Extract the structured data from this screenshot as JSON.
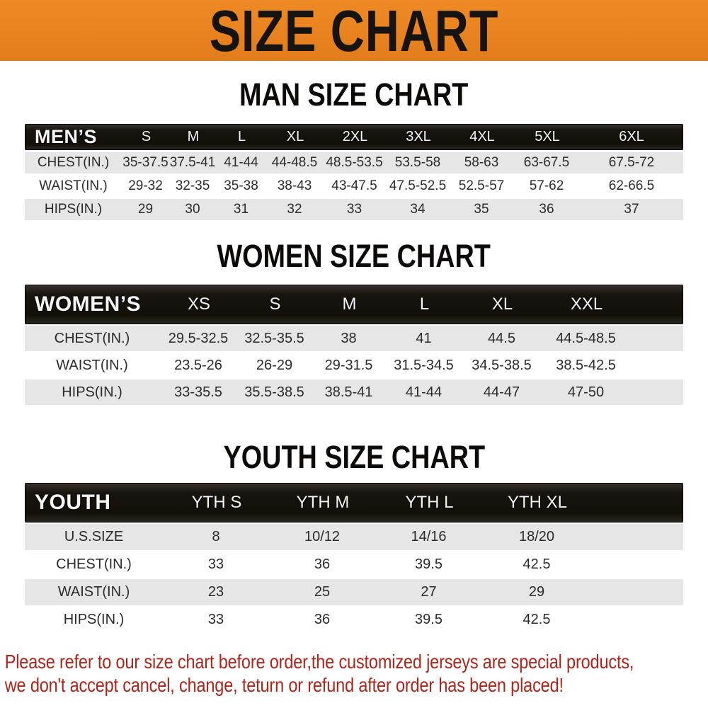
{
  "banner": {
    "title": "SIZE CHART"
  },
  "colors": {
    "banner_bg": "#e8831f",
    "header_bar_bg": "#18140f",
    "row_alt_bg": "#e6e6e6",
    "footer_text": "#a9261d"
  },
  "sections": {
    "men": {
      "title": "MAN SIZE CHART",
      "corner_label": "MEN’S",
      "sizes": [
        "S",
        "M",
        "L",
        "XL",
        "2XL",
        "3XL",
        "4XL",
        "5XL",
        "6XL"
      ],
      "rows": [
        {
          "label": "CHEST(IN.)",
          "values": [
            "35-37.5",
            "37.5-41",
            "41-44",
            "44-48.5",
            "48.5-53.5",
            "53.5-58",
            "58-63",
            "63-67.5",
            "67.5-72"
          ]
        },
        {
          "label": "WAIST(IN.)",
          "values": [
            "29-32",
            "32-35",
            "35-38",
            "38-43",
            "43-47.5",
            "47.5-52.5",
            "52.5-57",
            "57-62",
            "62-66.5"
          ]
        },
        {
          "label": "HIPS(IN.)",
          "values": [
            "29",
            "30",
            "31",
            "32",
            "33",
            "34",
            "35",
            "36",
            "37"
          ]
        }
      ]
    },
    "women": {
      "title": "WOMEN SIZE CHART",
      "corner_label": "WOMEN’S",
      "sizes": [
        "XS",
        "S",
        "M",
        "L",
        "XL",
        "XXL"
      ],
      "rows": [
        {
          "label": "CHEST(IN.)",
          "values": [
            "29.5-32.5",
            "32.5-35.5",
            "38",
            "41",
            "44.5",
            "44.5-48.5"
          ]
        },
        {
          "label": "WAIST(IN.)",
          "values": [
            "23.5-26",
            "26-29",
            "29-31.5",
            "31.5-34.5",
            "34.5-38.5",
            "38.5-42.5"
          ]
        },
        {
          "label": "HIPS(IN.)",
          "values": [
            "33-35.5",
            "35.5-38.5",
            "38.5-41",
            "41-44",
            "44-47",
            "47-50"
          ]
        }
      ]
    },
    "youth": {
      "title": "YOUTH SIZE CHART",
      "corner_label": "YOUTH",
      "sizes": [
        "YTH S",
        "YTH M",
        "YTH L",
        "YTH XL"
      ],
      "rows": [
        {
          "label": "U.S.SIZE",
          "values": [
            "8",
            "10/12",
            "14/16",
            "18/20"
          ]
        },
        {
          "label": "CHEST(IN.)",
          "values": [
            "33",
            "36",
            "39.5",
            "42.5"
          ]
        },
        {
          "label": "WAIST(IN.)",
          "values": [
            "23",
            "25",
            "27",
            "29"
          ]
        },
        {
          "label": "HIPS(IN.)",
          "values": [
            "33",
            "36",
            "39.5",
            "42.5"
          ]
        }
      ]
    }
  },
  "footer": {
    "line1": "Please refer to our size chart before order,the customized jerseys are special products,",
    "line2": "we don't accept cancel, change, teturn or refund after order has been placed!"
  }
}
